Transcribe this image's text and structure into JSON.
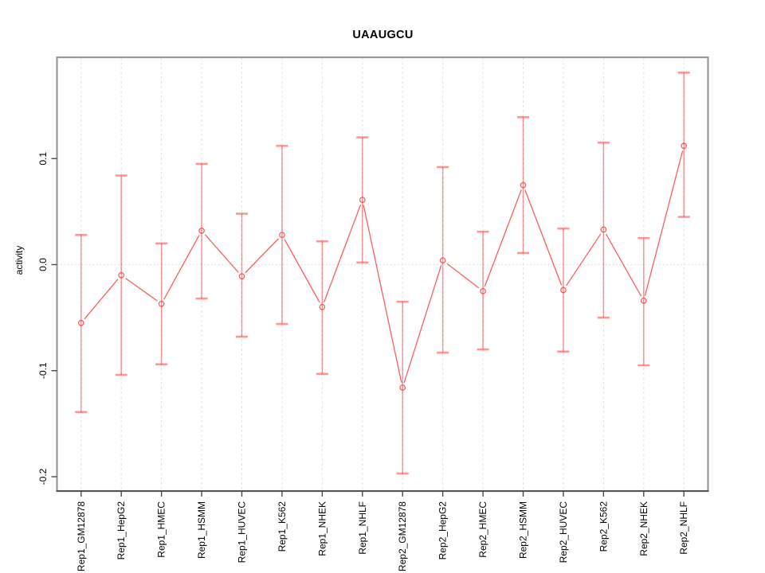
{
  "title": "UAAUGCU",
  "chart_data": {
    "type": "line",
    "title": "UAAUGCU",
    "xlabel": "",
    "ylabel": "activity",
    "legend": "none",
    "grid": "vertical dashed gridline at each category; dotted horizontal line at y=0",
    "error_bars": true,
    "point_style": "open-circle",
    "categories": [
      "Rep1_GM12878",
      "Rep1_HepG2",
      "Rep1_HMEC",
      "Rep1_HSMM",
      "Rep1_HUVEC",
      "Rep1_K562",
      "Rep1_NHEK",
      "Rep1_NHLF",
      "Rep2_GM12878",
      "Rep2_HepG2",
      "Rep2_HMEC",
      "Rep2_HSMM",
      "Rep2_HUVEC",
      "Rep2_K562",
      "Rep2_NHEK",
      "Rep2_NHLF"
    ],
    "series": [
      {
        "name": "activity",
        "values": [
          -0.055,
          -0.01,
          -0.037,
          0.032,
          -0.011,
          0.028,
          -0.04,
          0.061,
          -0.116,
          0.004,
          -0.025,
          0.075,
          -0.024,
          0.033,
          -0.034,
          0.112
        ],
        "lower": [
          -0.139,
          -0.104,
          -0.094,
          -0.032,
          -0.068,
          -0.056,
          -0.103,
          0.002,
          -0.197,
          -0.083,
          -0.08,
          0.011,
          -0.082,
          -0.05,
          -0.095,
          0.045
        ],
        "upper": [
          0.028,
          0.084,
          0.02,
          0.095,
          0.048,
          0.112,
          0.022,
          0.12,
          -0.035,
          0.092,
          0.031,
          0.139,
          0.034,
          0.115,
          0.025,
          0.181
        ]
      }
    ],
    "yticks": [
      0.1,
      0.0,
      -0.1,
      -0.2
    ],
    "ytick_labels": [
      "0.1",
      "0.0",
      "-0.1",
      "-0.2"
    ],
    "ylim": [
      -0.2135,
      0.1955
    ],
    "xlim": [
      0.4,
      16.6
    ],
    "colors": {
      "series": "rgba(248,42,42,0.75)",
      "error_bar": "rgba(248,56,56,0.52)",
      "box": "#9a9a9a",
      "bottom_axis": "#3a3a3a",
      "tick": "#4a4a4a",
      "grid": "#e2e2e2",
      "zero_line": "#d8d8d8",
      "text": "#000000"
    }
  }
}
